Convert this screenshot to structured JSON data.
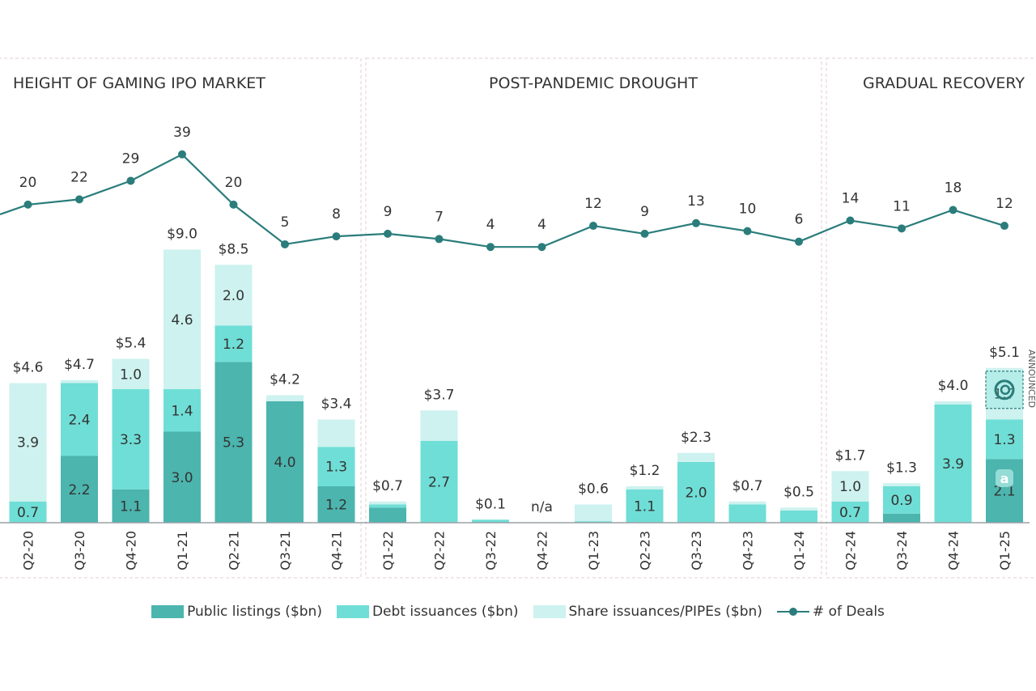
{
  "chart_data": {
    "type": "bar",
    "stacked": true,
    "categories": [
      "Q2-20",
      "Q3-20",
      "Q4-20",
      "Q1-21",
      "Q2-21",
      "Q3-21",
      "Q4-21",
      "Q1-22",
      "Q2-22",
      "Q3-22",
      "Q4-22",
      "Q1-23",
      "Q2-23",
      "Q3-23",
      "Q4-23",
      "Q1-24",
      "Q2-24",
      "Q3-24",
      "Q4-24",
      "Q1-25"
    ],
    "sections": [
      {
        "title": "HEIGHT OF GAMING IPO MARKET",
        "from": "Q2-20",
        "to": "Q4-21"
      },
      {
        "title": "POST-PANDEMIC DROUGHT",
        "from": "Q1-22",
        "to": "Q1-24"
      },
      {
        "title": "GRADUAL RECOVERY",
        "from": "Q2-24",
        "to": "Q1-25"
      }
    ],
    "series": [
      {
        "name": "Public listings ($bn)",
        "color": "#4bb5ae",
        "values": [
          0,
          2.2,
          1.1,
          3.0,
          5.3,
          4.0,
          1.2,
          0.5,
          0,
          0,
          0,
          0,
          0,
          0,
          0,
          0,
          0,
          0.3,
          0,
          2.1
        ],
        "labels": [
          "",
          "2.2",
          "1.1",
          "3.0",
          "5.3",
          "4.0",
          "1.2",
          "",
          "",
          "",
          "",
          "",
          "",
          "",
          "",
          "",
          "",
          "",
          "",
          "2.1"
        ]
      },
      {
        "name": "Debt issuances ($bn)",
        "color": "#6fded6",
        "values": [
          0.7,
          2.4,
          3.3,
          1.4,
          1.2,
          0,
          1.3,
          0.1,
          2.7,
          0.1,
          0,
          0.05,
          1.1,
          2.0,
          0.6,
          0.4,
          0.7,
          0.9,
          3.9,
          1.3
        ],
        "labels": [
          "0.7",
          "2.4",
          "3.3",
          "1.4",
          "1.2",
          "",
          "1.3",
          "",
          "2.7",
          "",
          "",
          "",
          "1.1",
          "2.0",
          "",
          "",
          "0.7",
          "0.9",
          "3.9",
          "1.3"
        ]
      },
      {
        "name": "Share issuances/PIPEs ($bn)",
        "color": "#cdf2ef",
        "values": [
          3.9,
          0.1,
          1.0,
          4.6,
          2.0,
          0.2,
          0.9,
          0.1,
          1.0,
          0,
          0,
          0.55,
          0.1,
          0.3,
          0.1,
          0.1,
          1.0,
          0.1,
          0.1,
          1.7
        ],
        "labels": [
          "3.9",
          "",
          "1.0",
          "4.6",
          "2.0",
          "",
          "",
          "",
          "",
          "",
          "",
          "",
          "",
          "",
          "",
          "",
          "1.0",
          "",
          "",
          "1.7"
        ]
      }
    ],
    "totals": [
      "$4.6",
      "$4.7",
      "$5.4",
      "$9.0",
      "$8.5",
      "$4.2",
      "$3.4",
      "$0.7",
      "$3.7",
      "$0.1",
      "n/a",
      "$0.6",
      "$1.2",
      "$2.3",
      "$0.7",
      "$0.5",
      "$1.7",
      "$1.3",
      "$4.0",
      "$5.1"
    ],
    "totals_values": [
      4.6,
      4.7,
      5.4,
      9.0,
      8.5,
      4.2,
      3.4,
      0.7,
      3.7,
      0.1,
      0,
      0.6,
      1.2,
      2.3,
      0.7,
      0.5,
      1.7,
      1.3,
      4.0,
      5.1
    ],
    "deals": {
      "name": "# of Deals",
      "color": "#2a7d7b",
      "values": [
        20,
        22,
        29,
        39,
        20,
        5,
        8,
        9,
        7,
        4,
        4,
        12,
        9,
        13,
        10,
        6,
        14,
        11,
        18,
        12
      ]
    },
    "announced": {
      "category": "Q1-25",
      "label": "ANNOUNCED",
      "value": 0.6
    },
    "ylim": [
      0,
      10
    ],
    "legend_position": "bottom"
  },
  "legend": {
    "public": "Public listings ($bn)",
    "debt": "Debt issuances ($bn)",
    "share": "Share issuances/PIPEs ($bn)",
    "deals": "# of Deals"
  },
  "colors": {
    "public": "#4bb5ae",
    "debt": "#6fded6",
    "share": "#cdf2ef",
    "line": "#2a7d7b",
    "divider": "#e8d6da",
    "axis": "#9aa0a6",
    "text": "#333333"
  }
}
